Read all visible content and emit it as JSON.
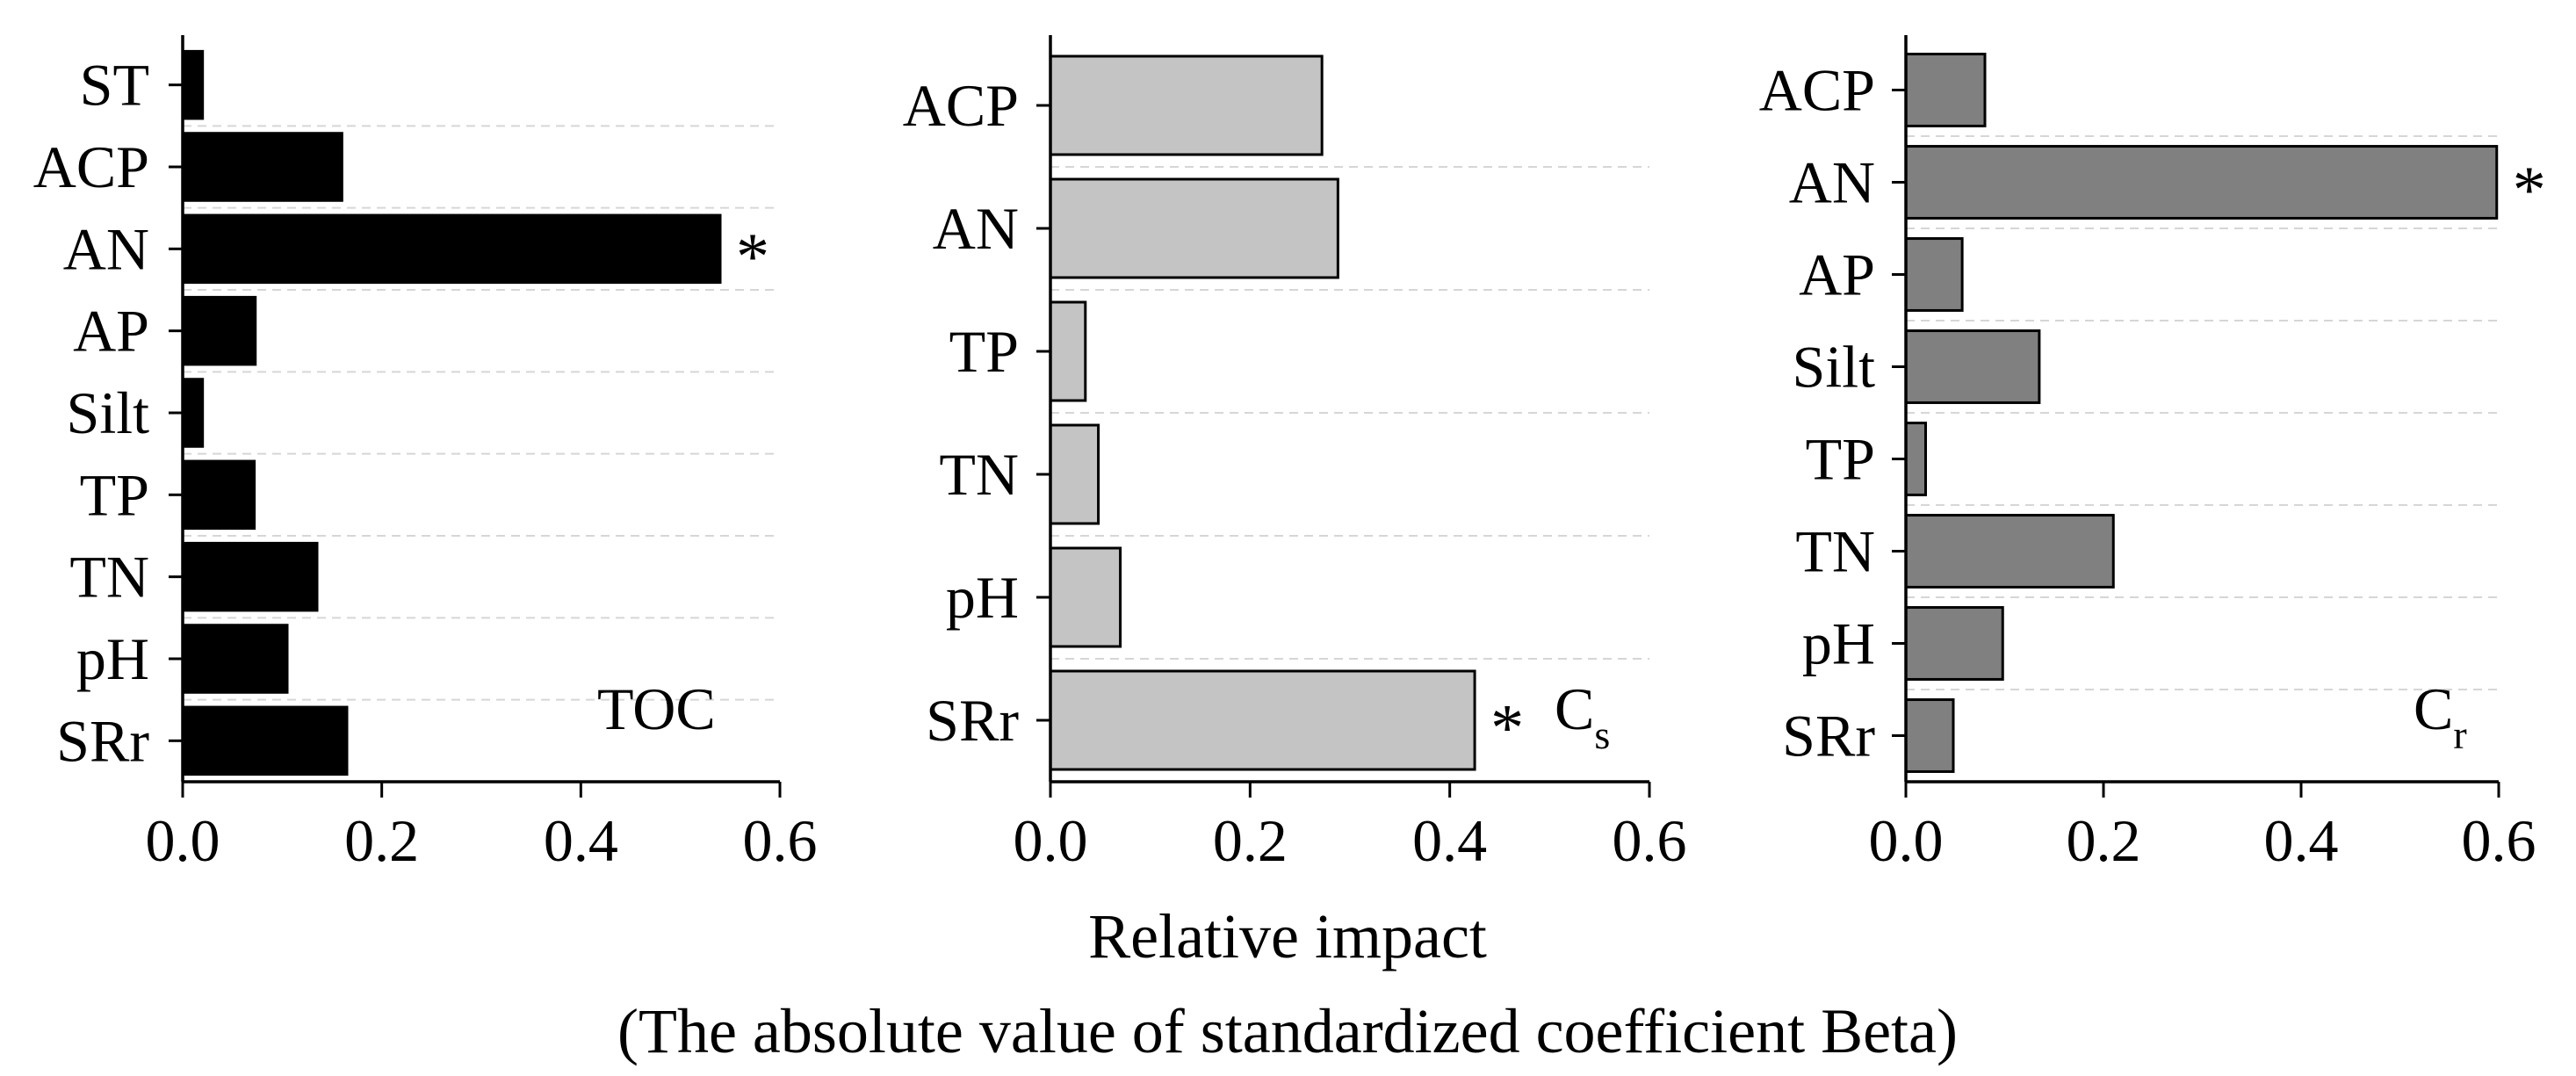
{
  "xlabel": "Relative impact",
  "xlabel_sub": "(The absolute value of standardized coefficient Beta)",
  "chart_data": [
    {
      "type": "bar",
      "orientation": "horizontal",
      "panel_label": "TOC",
      "panel_sub": "",
      "bar_color": "#000000",
      "categories": [
        "ST",
        "ACP",
        "AN",
        "AP",
        "Silt",
        "TP",
        "TN",
        "pH",
        "SRr"
      ],
      "values": [
        0.02,
        0.16,
        0.54,
        0.073,
        0.02,
        0.072,
        0.135,
        0.105,
        0.165
      ],
      "significant": [
        false,
        false,
        true,
        false,
        false,
        false,
        false,
        false,
        false
      ],
      "xlim": [
        0,
        0.6
      ],
      "xticks": [
        "0.0",
        "0.2",
        "0.4",
        "0.6"
      ],
      "grid": "horizontal dashed"
    },
    {
      "type": "bar",
      "orientation": "horizontal",
      "panel_label": "C",
      "panel_sub": "s",
      "bar_color": "#c4c4c4",
      "categories": [
        "ACP",
        "AN",
        "TP",
        "TN",
        "pH",
        "SRr"
      ],
      "values": [
        0.272,
        0.288,
        0.035,
        0.048,
        0.07,
        0.425
      ],
      "significant": [
        false,
        false,
        false,
        false,
        false,
        true
      ],
      "xlim": [
        0,
        0.6
      ],
      "xticks": [
        "0.0",
        "0.2",
        "0.4",
        "0.6"
      ],
      "grid": "horizontal dashed"
    },
    {
      "type": "bar",
      "orientation": "horizontal",
      "panel_label": "C",
      "panel_sub": "r",
      "bar_color": "#808080",
      "categories": [
        "ACP",
        "AN",
        "AP",
        "Silt",
        "TP",
        "TN",
        "pH",
        "SRr"
      ],
      "values": [
        0.08,
        0.598,
        0.057,
        0.135,
        0.02,
        0.21,
        0.098,
        0.048
      ],
      "significant": [
        false,
        true,
        false,
        false,
        false,
        false,
        false,
        false
      ],
      "xlim": [
        0,
        0.6
      ],
      "xticks": [
        "0.0",
        "0.2",
        "0.4",
        "0.6"
      ],
      "grid": "horizontal dashed"
    }
  ]
}
